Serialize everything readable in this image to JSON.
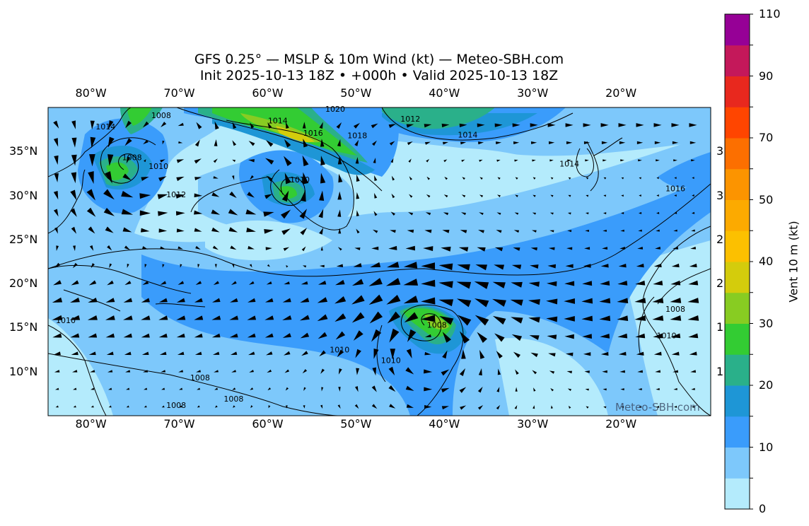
{
  "title": {
    "line1": "GFS 0.25° — MSLP & 10m Wind (kt) — Meteo-SBH.com",
    "line2": "Init 2025-10-13 18Z • +000h • Valid 2025-10-13 18Z"
  },
  "map": {
    "lon_range": [
      -85,
      -10
    ],
    "lat_range": [
      5,
      40
    ],
    "lon_ticks": [
      {
        "lon": -80,
        "label": "80°W"
      },
      {
        "lon": -70,
        "label": "70°W"
      },
      {
        "lon": -60,
        "label": "60°W"
      },
      {
        "lon": -50,
        "label": "50°W"
      },
      {
        "lon": -40,
        "label": "40°W"
      },
      {
        "lon": -30,
        "label": "30°W"
      },
      {
        "lon": -20,
        "label": "20°W"
      }
    ],
    "lat_ticks": [
      {
        "lat": 35,
        "label": "35°N",
        "right": "3"
      },
      {
        "lat": 30,
        "label": "30°N",
        "right": "3"
      },
      {
        "lat": 25,
        "label": "25°N",
        "right": "2"
      },
      {
        "lat": 20,
        "label": "20°N",
        "right": "2"
      },
      {
        "lat": 15,
        "label": "15°N",
        "right": "1"
      },
      {
        "lat": 10,
        "label": "10°N",
        "right": "1"
      }
    ],
    "watermark": "Meteo-SBH.com",
    "isobar_labels": [
      {
        "text": "1014",
        "lon": -78.5,
        "lat": 37.5
      },
      {
        "text": "1008",
        "lon": -72.2,
        "lat": 38.8
      },
      {
        "text": "1008",
        "lon": -75.5,
        "lat": 34.0
      },
      {
        "text": "1010",
        "lon": -72.5,
        "lat": 33.0
      },
      {
        "text": "1012",
        "lon": -70.5,
        "lat": 29.8
      },
      {
        "text": "1014",
        "lon": -59.0,
        "lat": 38.2
      },
      {
        "text": "1016",
        "lon": -55.0,
        "lat": 36.8
      },
      {
        "text": "1020",
        "lon": -52.5,
        "lat": 39.5
      },
      {
        "text": "1018",
        "lon": -50.0,
        "lat": 36.5
      },
      {
        "text": "1010",
        "lon": -56.5,
        "lat": 31.5
      },
      {
        "text": "1012",
        "lon": -44.0,
        "lat": 38.4
      },
      {
        "text": "1014",
        "lon": -37.5,
        "lat": 36.6
      },
      {
        "text": "1014",
        "lon": -26.0,
        "lat": 33.3
      },
      {
        "text": "1016",
        "lon": -14.0,
        "lat": 30.5
      },
      {
        "text": "1010",
        "lon": -83.0,
        "lat": 15.5
      },
      {
        "text": "1010",
        "lon": -52.0,
        "lat": 12.2
      },
      {
        "text": "1010",
        "lon": -46.2,
        "lat": 11.0
      },
      {
        "text": "1008",
        "lon": -41.0,
        "lat": 15.0
      },
      {
        "text": "1008",
        "lon": -14.0,
        "lat": 16.8
      },
      {
        "text": "1010",
        "lon": -15.0,
        "lat": 13.8
      },
      {
        "text": "1008",
        "lon": -67.8,
        "lat": 9.0
      },
      {
        "text": "1008",
        "lon": -64.0,
        "lat": 6.6
      },
      {
        "text": "1008",
        "lon": -70.5,
        "lat": 5.9
      }
    ]
  },
  "colorbar": {
    "label": "Vent 10 m (kt)",
    "boundaries": [
      0,
      5,
      10,
      15,
      20,
      25,
      30,
      35,
      40,
      45,
      50,
      60,
      70,
      80,
      90,
      100,
      110
    ],
    "colors": [
      "#b4ebfc",
      "#7dc8fb",
      "#3a9cfb",
      "#1e96d6",
      "#2ab08a",
      "#33cc33",
      "#88cc22",
      "#d4cc0c",
      "#fcc000",
      "#fcaa00",
      "#fc9400",
      "#fc6f00",
      "#ff4500",
      "#e8281e",
      "#c4185a",
      "#960096"
    ],
    "tick_labels": [
      "0",
      "10",
      "20",
      "30",
      "40",
      "50",
      "70",
      "90",
      "110"
    ]
  }
}
